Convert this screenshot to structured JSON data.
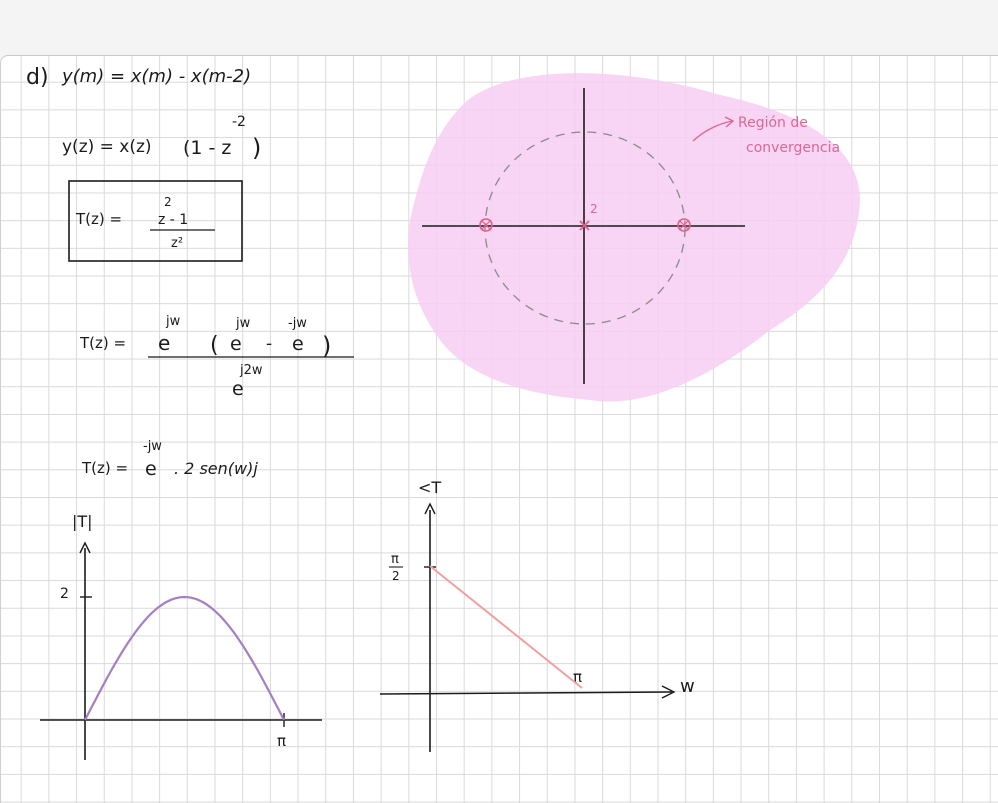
{
  "colors": {
    "ink": "#1b1b1b",
    "highlight": "#f7cdf3",
    "pole_marker": "#e0608a",
    "annotation": "#d86a93",
    "magnitude_curve": "#a57fc2",
    "phase_line": "#f0a0a0"
  },
  "equations": {
    "part_label": "d)",
    "difference_eq": "y(m) = x(m) - x(m-2)",
    "z_transform_lhs": "y(z) = x(z)",
    "z_transform_factor": "(1 - z",
    "z_transform_exp": "-2",
    "z_transform_close": ")",
    "T_label": "T(z) =",
    "T_boxed_num": "z - 1",
    "T_boxed_num_exp": "2",
    "T_boxed_den": "z²",
    "T_exp_label": "T(z) =",
    "T_exp_lead": "e",
    "T_exp_lead_sup": "jw",
    "T_exp_paren_open": "(",
    "T_exp_e1": "e",
    "T_exp_e1_sup": "jw",
    "T_exp_minus": "-",
    "T_exp_e2": "e",
    "T_exp_e2_sup": "-jw",
    "T_exp_paren_close": ")",
    "T_exp_den": "e",
    "T_exp_den_sup": "j2w",
    "T_final_label": "T(z) =",
    "T_final_e": "e",
    "T_final_sup": "-jw",
    "T_final_rest": ". 2 sen(w)j"
  },
  "z_plane": {
    "pole_order_label": "2",
    "annotation_line1": "Región de",
    "annotation_line2": "convergencia"
  },
  "magnitude_plot": {
    "ylabel": "|T|",
    "y_tick": "2",
    "x_tick": "π"
  },
  "phase_plot": {
    "ylabel": "<T",
    "y_tick_num": "π",
    "y_tick_den": "2",
    "x_tick": "π",
    "xlabel": "w"
  }
}
